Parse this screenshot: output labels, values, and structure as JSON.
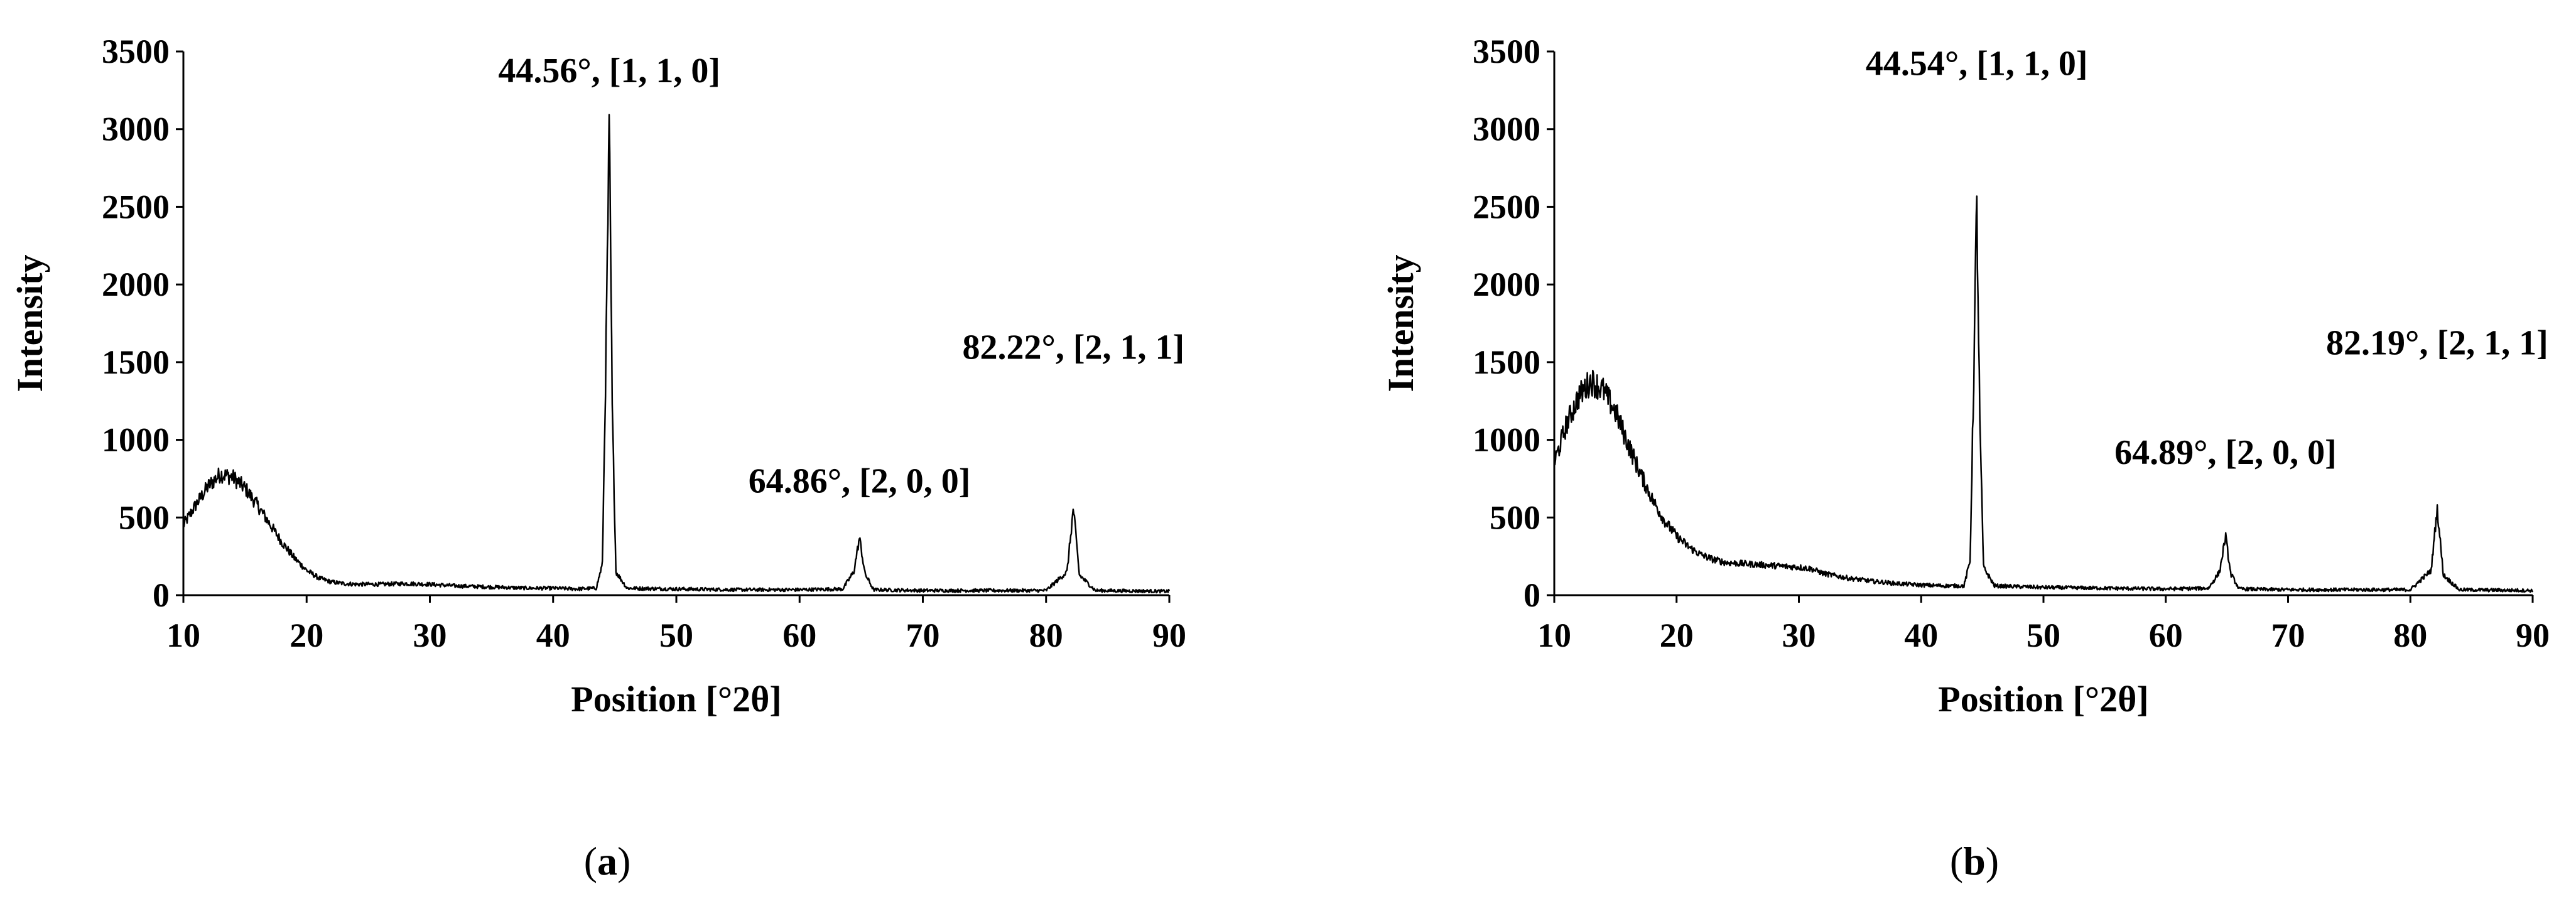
{
  "chart_data": [
    {
      "type": "line",
      "panel_label": "a",
      "xlabel": "Position [°2θ]",
      "ylabel": "Intensity",
      "xlim": [
        10,
        90
      ],
      "ylim": [
        0,
        3500
      ],
      "x_ticks": [
        10,
        20,
        30,
        40,
        50,
        60,
        70,
        80,
        90
      ],
      "y_ticks": [
        0,
        500,
        1000,
        1500,
        2000,
        2500,
        3000,
        3500
      ],
      "grid": false,
      "series": [
        {
          "x": [
            10,
            11,
            12,
            13,
            14,
            15,
            16,
            17,
            18,
            19,
            20,
            21,
            22,
            23,
            24,
            26,
            28,
            30,
            32,
            34,
            36,
            38,
            40,
            42,
            43.5,
            44,
            44.3,
            44.56,
            44.8,
            45.1,
            46,
            50,
            55,
            60,
            63.5,
            64.4,
            64.86,
            65.3,
            66,
            70,
            75,
            80,
            81.7,
            82.22,
            82.7,
            84,
            90
          ],
          "y": [
            450,
            580,
            700,
            780,
            760,
            690,
            580,
            460,
            340,
            240,
            160,
            110,
            85,
            75,
            70,
            70,
            75,
            70,
            60,
            55,
            50,
            45,
            45,
            40,
            45,
            200,
            1600,
            3020,
            1200,
            150,
            45,
            40,
            35,
            35,
            40,
            150,
            370,
            140,
            35,
            30,
            30,
            30,
            150,
            560,
            130,
            30,
            25
          ]
        }
      ],
      "annotations": [
        {
          "text": "44.56°, [1, 1, 0]",
          "x": 44.56,
          "y": 3020
        },
        {
          "text": "64.86°, [2, 0, 0]",
          "x": 64.86,
          "y": 370
        },
        {
          "text": "82.22°, [2, 1, 1]",
          "x": 82.22,
          "y": 560
        }
      ]
    },
    {
      "type": "line",
      "panel_label": "b",
      "xlabel": "Position [°2θ]",
      "ylabel": "Intensity",
      "xlim": [
        10,
        90
      ],
      "ylim": [
        0,
        3500
      ],
      "x_ticks": [
        10,
        20,
        30,
        40,
        50,
        60,
        70,
        80,
        90
      ],
      "y_ticks": [
        0,
        500,
        1000,
        1500,
        2000,
        2500,
        3000,
        3500
      ],
      "grid": false,
      "series": [
        {
          "x": [
            10,
            11,
            12,
            13,
            14,
            15,
            16,
            17,
            18,
            19,
            20,
            21,
            22,
            23,
            24,
            26,
            28,
            30,
            31,
            32,
            34,
            36,
            38,
            40,
            42,
            43.5,
            44,
            44.3,
            44.54,
            44.8,
            45.1,
            46,
            50,
            55,
            60,
            63.5,
            64.4,
            64.89,
            65.3,
            66,
            70,
            75,
            80,
            81.7,
            82.19,
            82.7,
            84,
            90
          ],
          "y": [
            850,
            1100,
            1280,
            1380,
            1320,
            1180,
            980,
            790,
            620,
            480,
            380,
            310,
            260,
            230,
            210,
            200,
            190,
            180,
            170,
            140,
            110,
            90,
            75,
            65,
            60,
            60,
            220,
            1400,
            2540,
            1100,
            180,
            60,
            50,
            45,
            40,
            45,
            150,
            380,
            140,
            40,
            35,
            35,
            35,
            160,
            560,
            130,
            35,
            30
          ]
        }
      ],
      "annotations": [
        {
          "text": "44.54°, [1, 1, 0]",
          "x": 44.54,
          "y": 2540
        },
        {
          "text": "64.89°, [2, 0, 0]",
          "x": 64.89,
          "y": 380
        },
        {
          "text": "82.19°, [2, 1, 1]",
          "x": 82.19,
          "y": 560
        }
      ]
    }
  ]
}
